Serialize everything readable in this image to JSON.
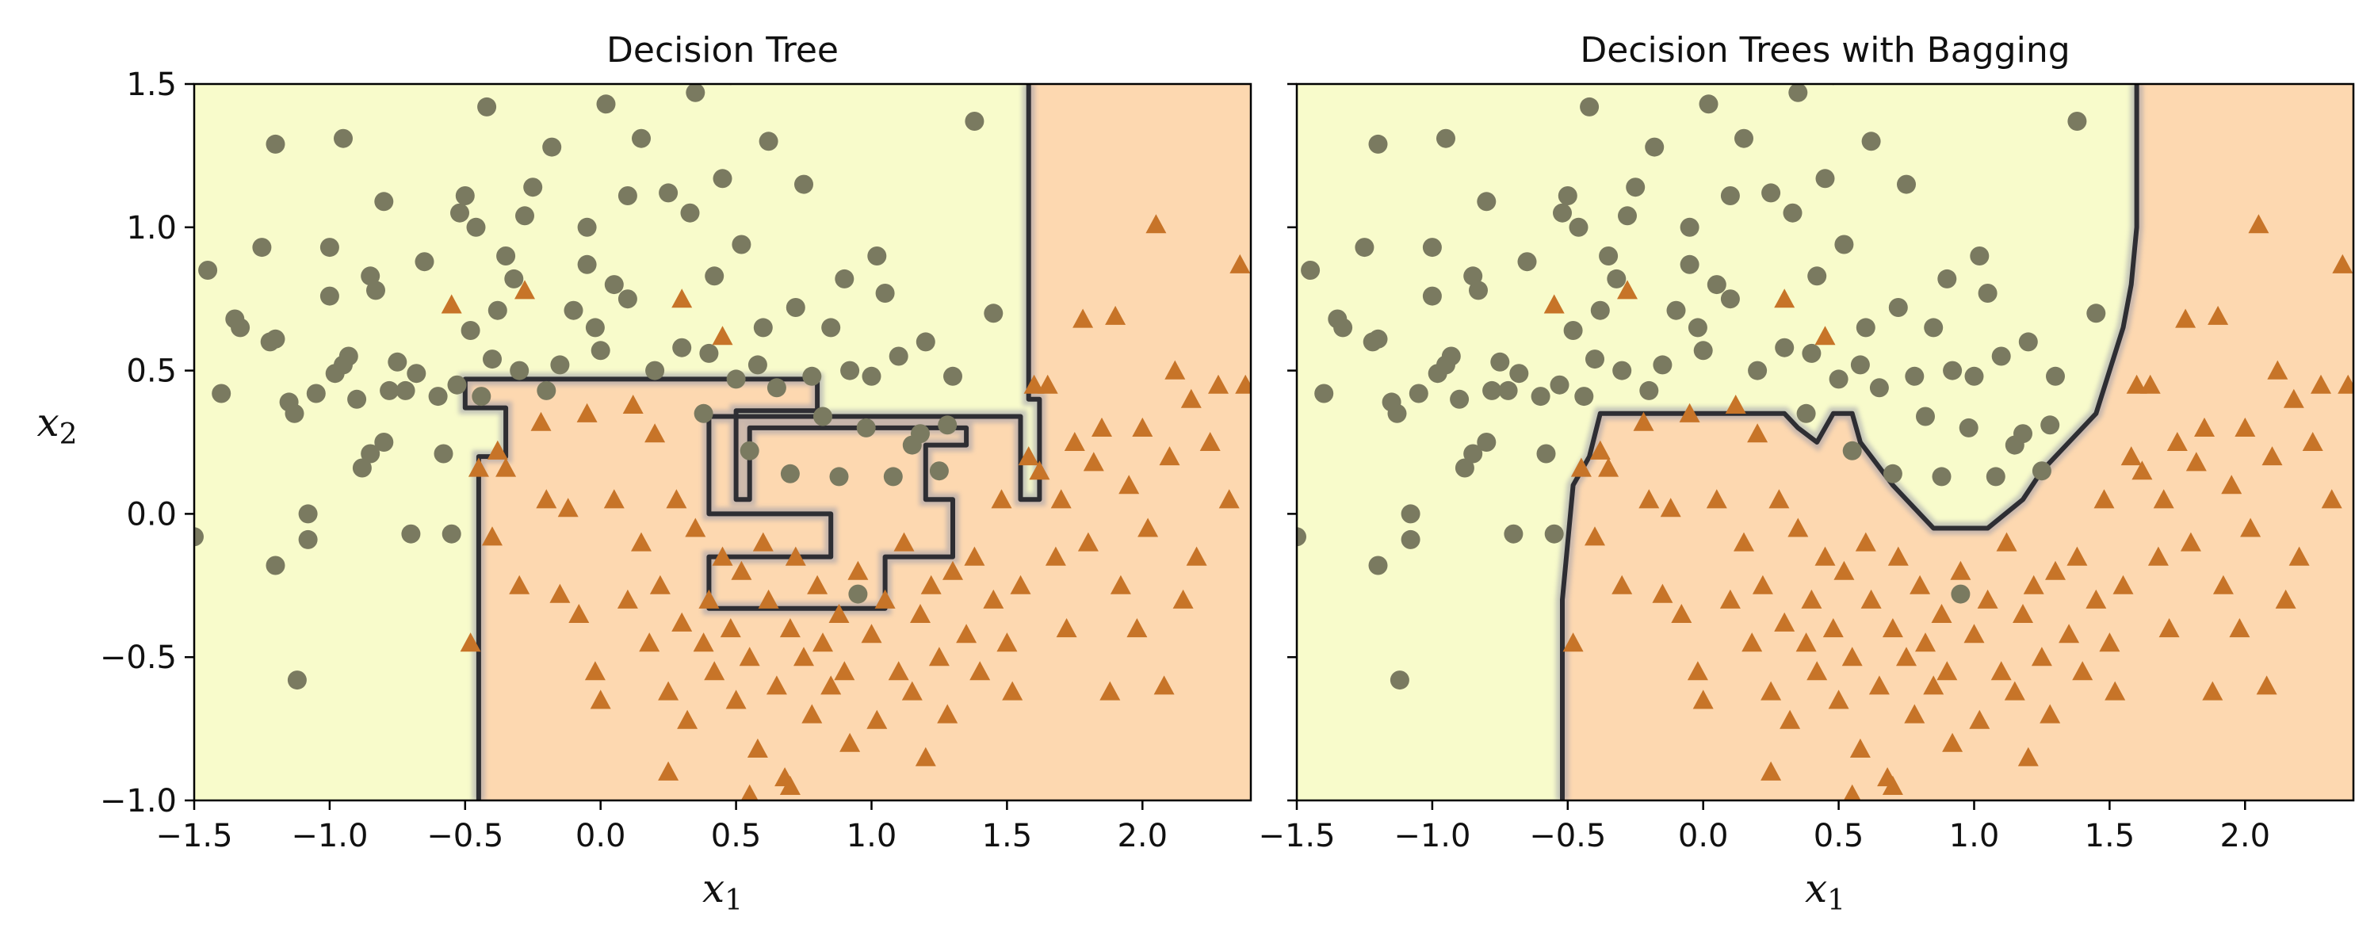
{
  "colors": {
    "region_class0": "#f8fbcb",
    "region_class1": "#fdd8b0",
    "boundary": "#2e2e33",
    "class0_marker": "#7a7a60",
    "class1_marker": "#c77428",
    "axis": "#000000"
  },
  "chart_data": [
    {
      "type": "scatter",
      "title": "Decision Tree",
      "xlabel": "x1",
      "ylabel": "x2",
      "xlim": [
        -1.5,
        2.4
      ],
      "ylim": [
        -1.0,
        1.5
      ],
      "xticks": [
        -1.5,
        -1.0,
        -0.5,
        0.0,
        0.5,
        1.0,
        1.5,
        2.0
      ],
      "xtick_labels": [
        "−1.5",
        "−1.0",
        "−0.5",
        "0.0",
        "0.5",
        "1.0",
        "1.5",
        "2.0"
      ],
      "yticks": [
        -1.0,
        -0.5,
        0.0,
        0.5,
        1.0,
        1.5
      ],
      "ytick_labels": [
        "−1.0",
        "−0.5",
        "0.0",
        "0.5",
        "1.0",
        "1.5"
      ],
      "show_yticklabels": true,
      "decision_boundary": [
        [
          -0.45,
          -1.0
        ],
        [
          -0.45,
          0.2
        ],
        [
          -0.35,
          0.2
        ],
        [
          -0.35,
          0.37
        ],
        [
          -0.5,
          0.37
        ],
        [
          -0.5,
          0.47
        ],
        [
          0.8,
          0.47
        ],
        [
          0.8,
          0.36
        ],
        [
          0.5,
          0.36
        ],
        [
          0.5,
          0.05
        ],
        [
          0.55,
          0.05
        ],
        [
          0.55,
          0.3
        ],
        [
          1.35,
          0.3
        ],
        [
          1.35,
          0.24
        ],
        [
          1.2,
          0.24
        ],
        [
          1.2,
          0.05
        ],
        [
          1.3,
          0.05
        ],
        [
          1.3,
          -0.15
        ],
        [
          1.05,
          -0.15
        ],
        [
          1.05,
          -0.33
        ],
        [
          0.4,
          -0.33
        ],
        [
          0.4,
          -0.15
        ],
        [
          0.85,
          -0.15
        ],
        [
          0.85,
          0.0
        ],
        [
          0.4,
          0.0
        ],
        [
          0.4,
          0.34
        ],
        [
          1.55,
          0.34
        ],
        [
          1.55,
          0.05
        ],
        [
          1.62,
          0.05
        ],
        [
          1.62,
          0.4
        ],
        [
          1.58,
          0.4
        ],
        [
          1.58,
          1.5
        ]
      ],
      "series": [
        {
          "class": 0,
          "marker": "circle",
          "points": [
            [
              -1.5,
              -0.08
            ],
            [
              -1.45,
              0.85
            ],
            [
              -1.4,
              0.42
            ],
            [
              -1.35,
              0.68
            ],
            [
              -1.33,
              0.65
            ],
            [
              -1.25,
              0.93
            ],
            [
              -1.22,
              0.6
            ],
            [
              -1.2,
              0.61
            ],
            [
              -1.2,
              1.29
            ],
            [
              -1.2,
              -0.18
            ],
            [
              -1.15,
              0.39
            ],
            [
              -1.13,
              0.35
            ],
            [
              -1.12,
              -0.58
            ],
            [
              -1.08,
              0.0
            ],
            [
              -1.08,
              -0.09
            ],
            [
              -1.05,
              0.42
            ],
            [
              -1.0,
              0.93
            ],
            [
              -1.0,
              0.76
            ],
            [
              -0.98,
              0.49
            ],
            [
              -0.95,
              1.31
            ],
            [
              -0.95,
              0.52
            ],
            [
              -0.93,
              0.55
            ],
            [
              -0.9,
              0.4
            ],
            [
              -0.88,
              0.16
            ],
            [
              -0.85,
              0.21
            ],
            [
              -0.85,
              0.83
            ],
            [
              -0.83,
              0.78
            ],
            [
              -0.8,
              1.09
            ],
            [
              -0.8,
              0.25
            ],
            [
              -0.78,
              0.43
            ],
            [
              -0.75,
              0.53
            ],
            [
              -0.72,
              0.43
            ],
            [
              -0.7,
              -0.07
            ],
            [
              -0.68,
              0.49
            ],
            [
              -0.65,
              0.88
            ],
            [
              -0.6,
              0.41
            ],
            [
              -0.58,
              0.21
            ],
            [
              -0.55,
              -0.07
            ],
            [
              -0.53,
              0.45
            ],
            [
              -0.52,
              1.05
            ],
            [
              -0.5,
              1.11
            ],
            [
              -0.48,
              0.64
            ],
            [
              -0.46,
              1.0
            ],
            [
              -0.44,
              0.41
            ],
            [
              -0.42,
              1.42
            ],
            [
              -0.4,
              0.54
            ],
            [
              -0.38,
              0.71
            ],
            [
              -0.35,
              0.9
            ],
            [
              -0.32,
              0.82
            ],
            [
              -0.3,
              0.5
            ],
            [
              -0.28,
              1.04
            ],
            [
              -0.25,
              1.14
            ],
            [
              -0.2,
              0.43
            ],
            [
              -0.18,
              1.28
            ],
            [
              -0.15,
              0.52
            ],
            [
              -0.1,
              0.71
            ],
            [
              -0.05,
              1.0
            ],
            [
              -0.05,
              0.87
            ],
            [
              -0.02,
              0.65
            ],
            [
              0.0,
              0.57
            ],
            [
              0.02,
              1.43
            ],
            [
              0.05,
              0.8
            ],
            [
              0.1,
              0.75
            ],
            [
              0.1,
              1.11
            ],
            [
              0.15,
              1.31
            ],
            [
              0.2,
              0.5
            ],
            [
              0.25,
              1.12
            ],
            [
              0.3,
              0.58
            ],
            [
              0.33,
              1.05
            ],
            [
              0.35,
              1.47
            ],
            [
              0.38,
              0.35
            ],
            [
              0.4,
              0.56
            ],
            [
              0.42,
              0.83
            ],
            [
              0.45,
              1.17
            ],
            [
              0.48,
              1.53
            ],
            [
              0.5,
              0.47
            ],
            [
              0.52,
              0.94
            ],
            [
              0.55,
              0.22
            ],
            [
              0.58,
              0.52
            ],
            [
              0.6,
              0.65
            ],
            [
              0.62,
              1.3
            ],
            [
              0.65,
              0.44
            ],
            [
              0.7,
              0.14
            ],
            [
              0.72,
              0.72
            ],
            [
              0.75,
              1.15
            ],
            [
              0.78,
              0.48
            ],
            [
              0.82,
              0.34
            ],
            [
              0.85,
              0.65
            ],
            [
              0.88,
              0.13
            ],
            [
              0.9,
              0.82
            ],
            [
              0.92,
              0.5
            ],
            [
              0.95,
              -0.28
            ],
            [
              0.98,
              0.3
            ],
            [
              1.0,
              0.48
            ],
            [
              1.02,
              0.9
            ],
            [
              1.05,
              0.77
            ],
            [
              1.08,
              0.13
            ],
            [
              1.1,
              0.55
            ],
            [
              1.15,
              0.24
            ],
            [
              1.18,
              0.28
            ],
            [
              1.2,
              0.6
            ],
            [
              1.25,
              0.15
            ],
            [
              1.28,
              0.31
            ],
            [
              1.3,
              0.48
            ],
            [
              1.38,
              1.37
            ],
            [
              1.45,
              0.7
            ]
          ]
        },
        {
          "class": 1,
          "marker": "triangle",
          "points": [
            [
              -0.55,
              0.73
            ],
            [
              -0.48,
              -0.45
            ],
            [
              -0.45,
              0.16
            ],
            [
              -0.4,
              -0.08
            ],
            [
              -0.38,
              0.22
            ],
            [
              -0.35,
              0.16
            ],
            [
              -0.3,
              -0.25
            ],
            [
              -0.28,
              0.78
            ],
            [
              -0.22,
              0.32
            ],
            [
              -0.2,
              0.05
            ],
            [
              -0.15,
              -0.28
            ],
            [
              -0.12,
              0.02
            ],
            [
              -0.08,
              -0.35
            ],
            [
              -0.05,
              0.35
            ],
            [
              -0.02,
              -0.55
            ],
            [
              0.0,
              -0.65
            ],
            [
              0.05,
              0.05
            ],
            [
              0.1,
              -0.3
            ],
            [
              0.12,
              0.38
            ],
            [
              0.15,
              -0.1
            ],
            [
              0.18,
              -0.45
            ],
            [
              0.2,
              0.28
            ],
            [
              0.22,
              -0.25
            ],
            [
              0.25,
              -0.62
            ],
            [
              0.28,
              0.05
            ],
            [
              0.3,
              -0.38
            ],
            [
              0.32,
              -0.72
            ],
            [
              0.35,
              -0.05
            ],
            [
              0.38,
              -0.45
            ],
            [
              0.4,
              -0.3
            ],
            [
              0.42,
              -0.55
            ],
            [
              0.45,
              -0.15
            ],
            [
              0.48,
              -0.4
            ],
            [
              0.5,
              -0.65
            ],
            [
              0.52,
              -0.2
            ],
            [
              0.55,
              -0.5
            ],
            [
              0.58,
              -0.82
            ],
            [
              0.6,
              -0.1
            ],
            [
              0.62,
              -0.3
            ],
            [
              0.65,
              -0.6
            ],
            [
              0.68,
              -0.92
            ],
            [
              0.7,
              -0.4
            ],
            [
              0.72,
              -0.15
            ],
            [
              0.75,
              -0.5
            ],
            [
              0.78,
              -0.7
            ],
            [
              0.8,
              -0.25
            ],
            [
              0.82,
              -0.45
            ],
            [
              0.85,
              -0.6
            ],
            [
              0.88,
              -0.35
            ],
            [
              0.9,
              -0.55
            ],
            [
              0.92,
              -0.8
            ],
            [
              0.95,
              -0.2
            ],
            [
              1.0,
              -0.42
            ],
            [
              1.02,
              -0.72
            ],
            [
              1.05,
              -0.3
            ],
            [
              1.1,
              -0.55
            ],
            [
              1.12,
              -0.1
            ],
            [
              1.15,
              -0.62
            ],
            [
              1.18,
              -0.35
            ],
            [
              1.2,
              -0.85
            ],
            [
              1.22,
              -0.25
            ],
            [
              1.25,
              -0.5
            ],
            [
              1.28,
              -0.7
            ],
            [
              1.3,
              -0.2
            ],
            [
              1.35,
              -0.42
            ],
            [
              1.38,
              -0.15
            ],
            [
              1.4,
              -0.55
            ],
            [
              1.45,
              -0.3
            ],
            [
              1.48,
              0.05
            ],
            [
              1.5,
              -0.45
            ],
            [
              1.52,
              -0.62
            ],
            [
              1.55,
              -0.25
            ],
            [
              1.58,
              0.2
            ],
            [
              1.62,
              0.15
            ],
            [
              1.65,
              0.45
            ],
            [
              1.68,
              -0.15
            ],
            [
              1.7,
              0.05
            ],
            [
              1.72,
              -0.4
            ],
            [
              1.75,
              0.25
            ],
            [
              1.78,
              0.68
            ],
            [
              1.8,
              -0.1
            ],
            [
              1.82,
              0.18
            ],
            [
              1.85,
              0.3
            ],
            [
              1.88,
              -0.62
            ],
            [
              1.9,
              0.69
            ],
            [
              1.92,
              -0.25
            ],
            [
              1.95,
              0.1
            ],
            [
              1.98,
              -0.4
            ],
            [
              2.0,
              0.3
            ],
            [
              2.02,
              -0.05
            ],
            [
              2.05,
              1.01
            ],
            [
              2.08,
              -0.6
            ],
            [
              2.1,
              0.2
            ],
            [
              2.12,
              0.5
            ],
            [
              2.15,
              -0.3
            ],
            [
              2.18,
              0.4
            ],
            [
              2.2,
              -0.15
            ],
            [
              2.25,
              0.25
            ],
            [
              2.28,
              0.45
            ],
            [
              2.32,
              0.05
            ],
            [
              2.36,
              0.87
            ],
            [
              2.38,
              0.45
            ],
            [
              0.3,
              0.75
            ],
            [
              0.45,
              0.62
            ],
            [
              0.25,
              -0.9
            ],
            [
              0.55,
              -0.98
            ],
            [
              1.6,
              0.45
            ],
            [
              0.7,
              -0.95
            ]
          ]
        }
      ]
    },
    {
      "type": "scatter",
      "title": "Decision Trees with Bagging",
      "xlabel": "x1",
      "ylabel": "",
      "xlim": [
        -1.5,
        2.4
      ],
      "ylim": [
        -1.0,
        1.5
      ],
      "xticks": [
        -1.5,
        -1.0,
        -0.5,
        0.0,
        0.5,
        1.0,
        1.5,
        2.0
      ],
      "xtick_labels": [
        "−1.5",
        "−1.0",
        "−0.5",
        "0.0",
        "0.5",
        "1.0",
        "1.5",
        "2.0"
      ],
      "yticks": [
        -1.0,
        -0.5,
        0.0,
        0.5,
        1.0,
        1.5
      ],
      "ytick_labels": [],
      "show_yticklabels": false,
      "decision_boundary": [
        [
          -0.52,
          -1.0
        ],
        [
          -0.52,
          -0.3
        ],
        [
          -0.5,
          -0.1
        ],
        [
          -0.48,
          0.1
        ],
        [
          -0.42,
          0.2
        ],
        [
          -0.38,
          0.35
        ],
        [
          0.3,
          0.35
        ],
        [
          0.35,
          0.3
        ],
        [
          0.42,
          0.25
        ],
        [
          0.48,
          0.35
        ],
        [
          0.55,
          0.35
        ],
        [
          0.58,
          0.25
        ],
        [
          0.62,
          0.2
        ],
        [
          0.7,
          0.1
        ],
        [
          0.8,
          0.0
        ],
        [
          0.85,
          -0.05
        ],
        [
          1.05,
          -0.05
        ],
        [
          1.18,
          0.05
        ],
        [
          1.25,
          0.15
        ],
        [
          1.35,
          0.25
        ],
        [
          1.45,
          0.35
        ],
        [
          1.5,
          0.5
        ],
        [
          1.55,
          0.65
        ],
        [
          1.58,
          0.8
        ],
        [
          1.6,
          1.0
        ],
        [
          1.6,
          1.5
        ]
      ],
      "series": [
        {
          "class": 0,
          "marker": "circle",
          "same_as_left": true
        },
        {
          "class": 1,
          "marker": "triangle",
          "same_as_left": true
        }
      ]
    }
  ]
}
